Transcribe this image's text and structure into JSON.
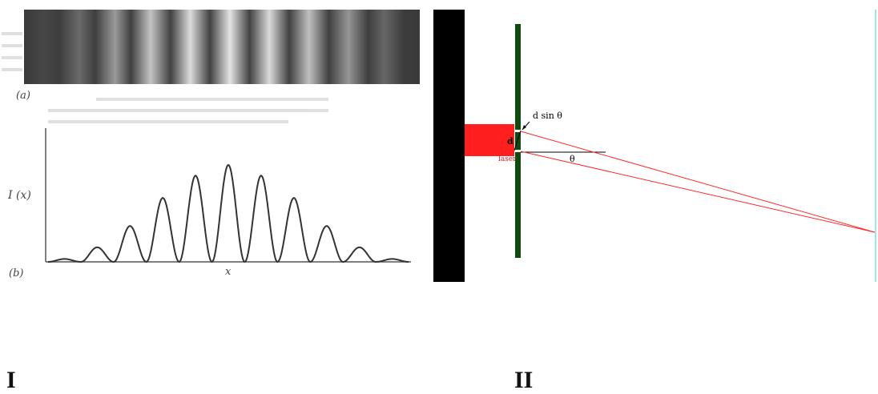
{
  "panel_I": {
    "label": "I",
    "caption_a": "(a)",
    "caption_b": "(b)",
    "y_axis_label": "I (x)",
    "x_axis_label": "x",
    "colors": {
      "fringe_dark": "#3a3a3a",
      "fringe_light": "#e4e4e4",
      "curve": "#333333"
    },
    "intensity_profile": {
      "type": "line",
      "peak_heights_relative": [
        0.03,
        0.15,
        0.37,
        0.66,
        0.89,
        1.0,
        0.89,
        0.66,
        0.37,
        0.15,
        0.03
      ]
    }
  },
  "panel_II": {
    "label": "II",
    "labels": {
      "path_difference": "d sin θ",
      "slit_separation": "d",
      "source": "laser",
      "angle": "θ"
    },
    "colors": {
      "wall": "#000000",
      "laser": "#ff1f1f",
      "barrier": "#0f4a0f",
      "screen": "#9fe3f5",
      "ray": "#ff2a2a",
      "source_label": "#d62020"
    }
  }
}
